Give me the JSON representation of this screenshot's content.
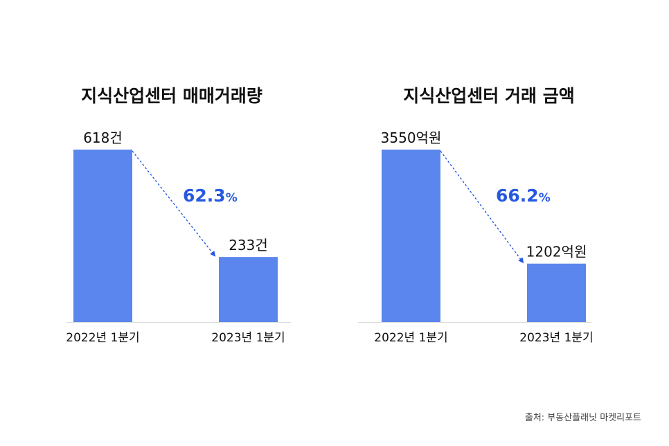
{
  "colors": {
    "bar": "#5B86EE",
    "accent": "#2659E0",
    "baseline": "#d9d9d9"
  },
  "chart_data": [
    {
      "type": "bar",
      "title": "지식산업센터 매매거래량",
      "categories": [
        "2022년 1분기",
        "2023년 1분기"
      ],
      "values": [
        618,
        233
      ],
      "unit": "건",
      "value_labels": [
        "618건",
        "233건"
      ],
      "change": {
        "number": "62.3",
        "suffix": "%"
      },
      "ylim": [
        0,
        618
      ],
      "grid": false,
      "legend": "none"
    },
    {
      "type": "bar",
      "title": "지식산업센터 거래 금액",
      "categories": [
        "2022년 1분기",
        "2023년 1분기"
      ],
      "values": [
        3550,
        1202
      ],
      "unit": "억원",
      "value_labels": [
        "3550억원",
        "1202억원"
      ],
      "change": {
        "number": "66.2",
        "suffix": "%"
      },
      "ylim": [
        0,
        3550
      ],
      "grid": false,
      "legend": "none"
    }
  ],
  "source": "출처: 부동산플래닛 마켓리포트"
}
